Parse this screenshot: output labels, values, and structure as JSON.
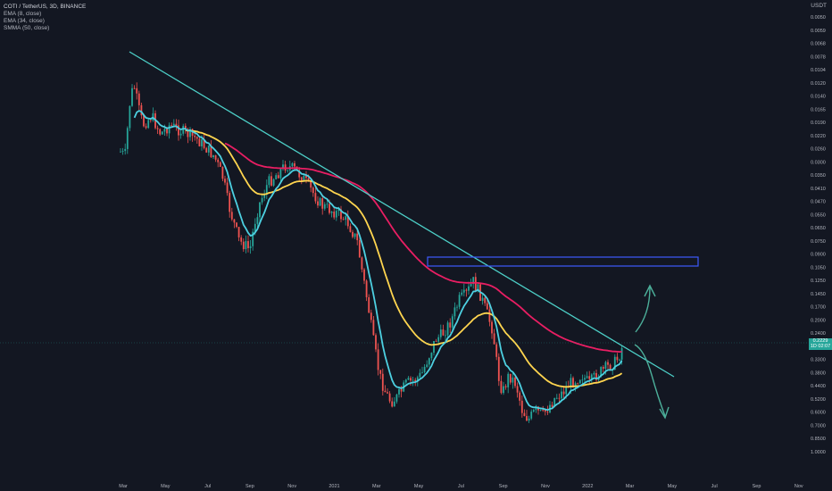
{
  "header": {
    "symbol_line": "COTI / TetherUS, 3D, BINANCE",
    "indicators": [
      "EMA (8, close)",
      "EMA (34, close)",
      "SMMA (50, close)"
    ],
    "currency": "USDT"
  },
  "price_tag": {
    "value": "0.2229",
    "countdown": "1D 02:07"
  },
  "colors": {
    "background": "#131722",
    "up": "#26a69a",
    "down": "#ef5350",
    "ema8": "#4dd0e1",
    "ema34": "#ffd54f",
    "smma50": "#e91e63",
    "trendline": "#4dd0c8",
    "zone": "#3d5afe",
    "arrows": "#4caf9a"
  },
  "chart_data": {
    "type": "candlestick",
    "y_scale": "inverted log",
    "y_ticks": [
      "0.0050",
      "0.0059",
      "0.0068",
      "0.0078",
      "0.0104",
      "0.0120",
      "0.0140",
      "0.0165",
      "0.0190",
      "0.0220",
      "0.0260",
      "0.0300",
      "0.0350",
      "0.0410",
      "0.0470",
      "0.0550",
      "0.0650",
      "0.0750",
      "0.0900",
      "0.1050",
      "0.1250",
      "0.1450",
      "0.1700",
      "0.2000",
      "0.2400",
      "0.2800",
      "0.3300",
      "0.3800",
      "0.4400",
      "0.5200",
      "0.6000",
      "0.7000",
      "0.8500",
      "1.0000"
    ],
    "x_ticks": [
      "Mar",
      "May",
      "Jul",
      "Sep",
      "Nov",
      "2021",
      "Mar",
      "May",
      "Jul",
      "Sep",
      "Nov",
      "2022",
      "Mar",
      "May",
      "Jul",
      "Sep",
      "Nov"
    ],
    "ohlc_note": "3-day candles, Mar 2020 – Feb 2022",
    "series": [
      {
        "name": "EMA (8, close)"
      },
      {
        "name": "EMA (34, close)"
      },
      {
        "name": "SMMA (50, close)"
      }
    ],
    "grid": false
  }
}
